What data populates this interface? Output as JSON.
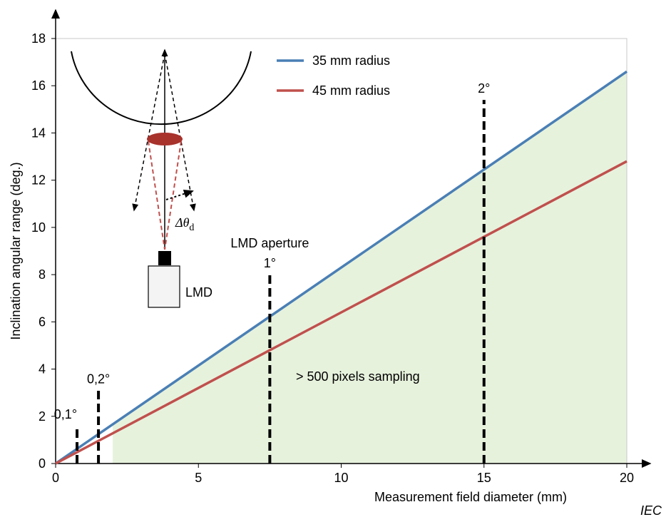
{
  "chart_data": {
    "type": "line",
    "x_label": "Measurement field diameter  (mm)",
    "y_label": "Inclination angular range  (deg.)",
    "xlim": [
      0,
      20
    ],
    "ylim": [
      0,
      18
    ],
    "xticks": [
      0,
      5,
      10,
      15,
      20
    ],
    "yticks": [
      0,
      2,
      4,
      6,
      8,
      10,
      12,
      14,
      16,
      18
    ],
    "series": [
      {
        "name": "35 mm radius",
        "color": "#4a7fb5",
        "x": [
          0,
          20
        ],
        "values": [
          0,
          16.6
        ]
      },
      {
        "name": "45 mm radius",
        "color": "#c0504d",
        "x": [
          0,
          20
        ],
        "values": [
          0,
          12.8
        ]
      }
    ],
    "fill": {
      "color": "#e7f2dd",
      "xlim": [
        2,
        20
      ]
    },
    "markers": [
      {
        "label": "0,1°",
        "x": 0.75,
        "height": 1.6
      },
      {
        "label": "0,2°",
        "x": 1.5,
        "height": 3.1
      },
      {
        "label": "1°",
        "x": 7.5,
        "height": 8
      },
      {
        "label": "2°",
        "x": 15,
        "height": 15.4
      }
    ],
    "annotations": {
      "aperture": "LMD aperture",
      "sampling": "> 500 pixels sampling"
    },
    "diagram": {
      "device": "LMD",
      "angle": "Δθ",
      "angle_sub": "d"
    },
    "credit": "IEC"
  }
}
